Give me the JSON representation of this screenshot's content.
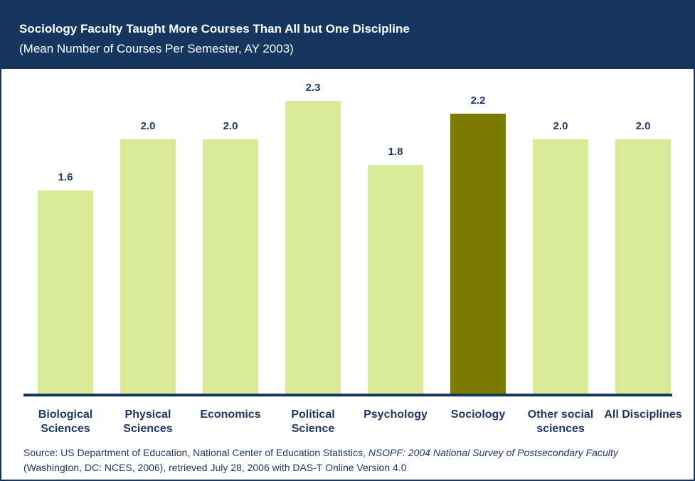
{
  "chart_data": {
    "type": "bar",
    "title": "Sociology Faculty Taught More Courses Than All but One Discipline",
    "subtitle": "(Mean Number of Courses Per Semester, AY 2003)",
    "categories": [
      "Biological Sciences",
      "Physical Sciences",
      "Economics",
      "Political Science",
      "Psychology",
      "Sociology",
      "Other social sciences",
      "All Disciplines"
    ],
    "values": [
      1.6,
      2,
      2,
      2.3,
      1.8,
      2.2,
      2,
      2
    ],
    "value_labels": [
      "1.6",
      "2.0",
      "2.0",
      "2.3",
      "1.8",
      "2.2",
      "2.0",
      "2.0"
    ],
    "colors": [
      "#d9ea97",
      "#d9ea97",
      "#d9ea97",
      "#d9ea97",
      "#d9ea97",
      "#7b7b00",
      "#d9ea97",
      "#d9ea97"
    ],
    "ylim": [
      0,
      2.5
    ],
    "source": [
      "Source: US Department of Education, National Center of Education Statistics, ",
      "NSOPF: 2004 National Survey of Postsecondary Faculty",
      " (Washington, DC: NCES, 2006), retrieved July 28, 2006 with DAS-T Online Version 4.0"
    ]
  }
}
